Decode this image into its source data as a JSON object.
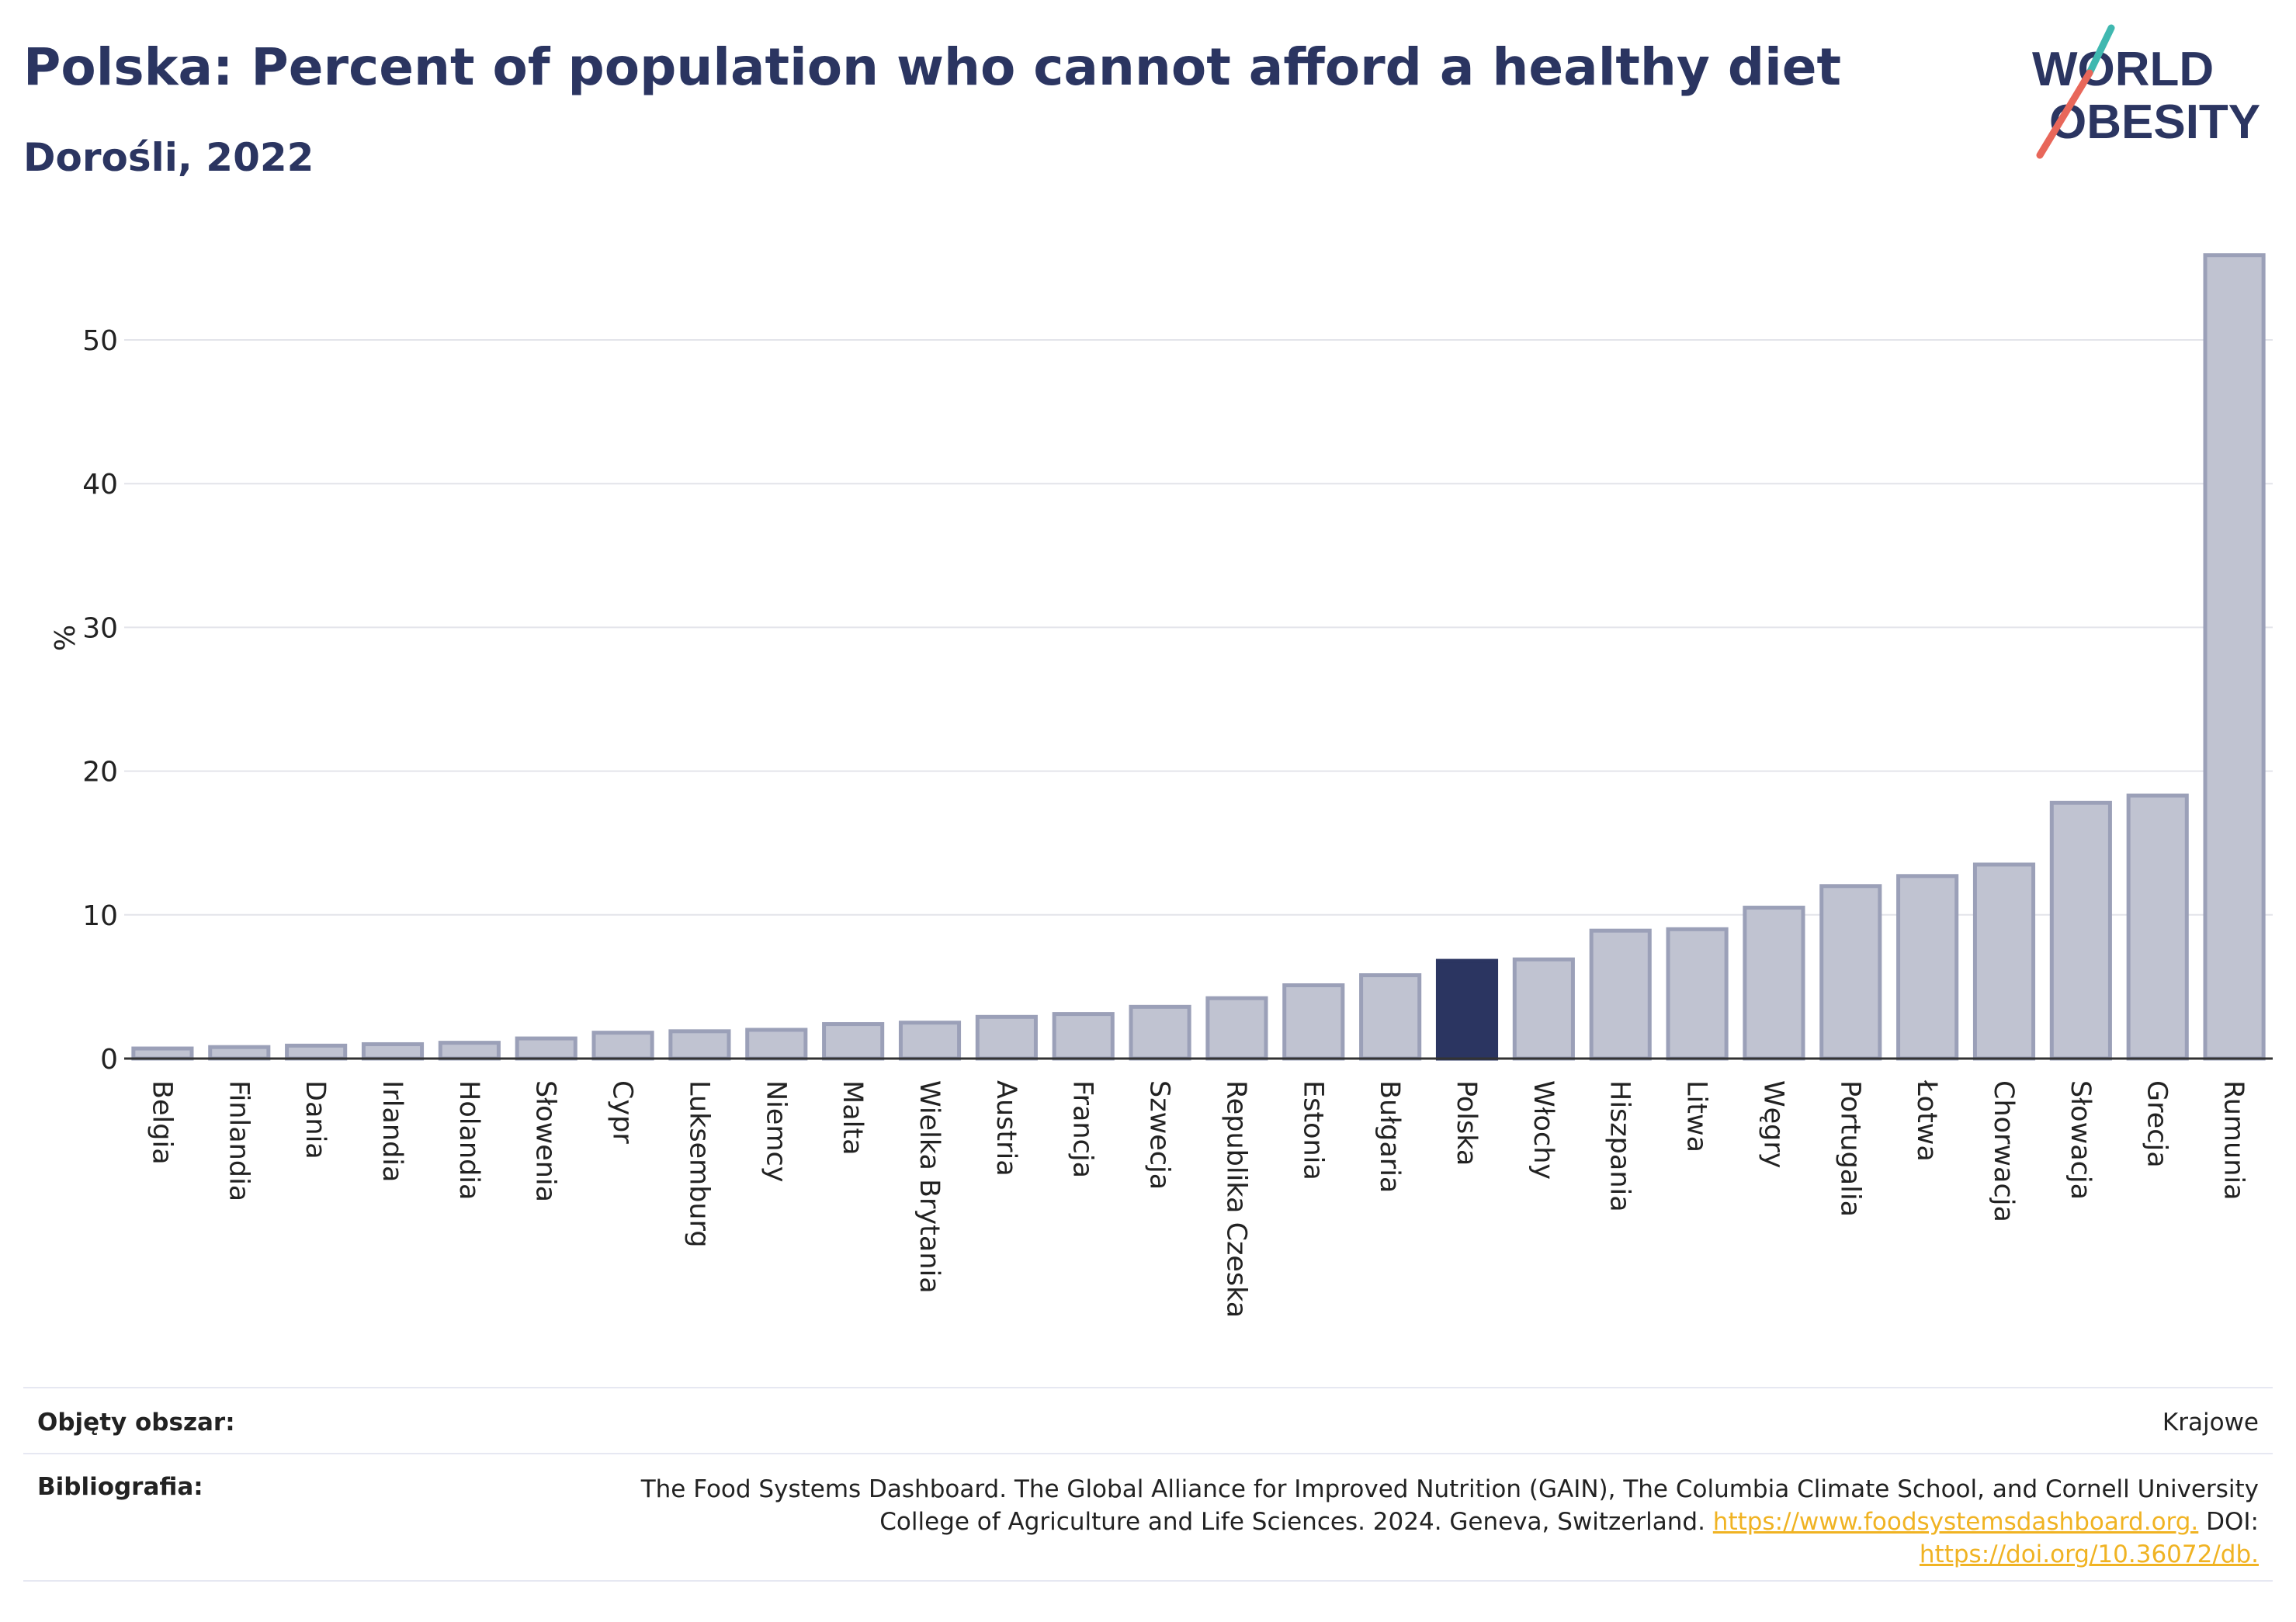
{
  "header": {
    "title": "Polska: Percent of population who cannot afford a healthy diet",
    "subtitle": "Dorośli, 2022"
  },
  "logo": {
    "line1": "WORLD",
    "line2": "OBESITY"
  },
  "colors": {
    "highlight": "#2b3561",
    "bar": "#c0c3d1",
    "bar_border": "#9ba0b8",
    "grid": "#e3e4ea",
    "accent_teal": "#3fb8b0",
    "accent_red": "#e8675a"
  },
  "chart_data": {
    "type": "bar",
    "title": "Polska: Percent of population who cannot afford a healthy diet",
    "subtitle": "Dorośli, 2022",
    "xlabel": "",
    "ylabel": "%",
    "ylim": [
      0,
      56
    ],
    "yticks": [
      0,
      10,
      20,
      30,
      40,
      50
    ],
    "grid": true,
    "highlight": "Polska",
    "categories": [
      "Belgia",
      "Finlandia",
      "Dania",
      "Irlandia",
      "Holandia",
      "Słowenia",
      "Cypr",
      "Luksemburg",
      "Niemcy",
      "Malta",
      "Wielka Brytania",
      "Austria",
      "Francja",
      "Szwecja",
      "Republika Czeska",
      "Estonia",
      "Bułgaria",
      "Polska",
      "Włochy",
      "Hiszpania",
      "Litwa",
      "Węgry",
      "Portugalia",
      "Łotwa",
      "Chorwacja",
      "Słowacja",
      "Grecja",
      "Rumunia"
    ],
    "values": [
      0.7,
      0.8,
      0.9,
      1.0,
      1.1,
      1.4,
      1.8,
      1.9,
      2.0,
      2.4,
      2.5,
      2.9,
      3.1,
      3.6,
      4.2,
      5.1,
      5.8,
      6.8,
      6.9,
      8.9,
      9.0,
      10.5,
      12.0,
      12.7,
      13.5,
      17.8,
      18.3,
      55.9
    ]
  },
  "footer": {
    "coverage_label": "Objęty obszar:",
    "coverage_value": "Krajowe",
    "bibliography_label": "Bibliografia:",
    "bibliography_line1": "The Food Systems Dashboard. The Global Alliance for Improved Nutrition (GAIN), The Columbia Climate School, and Cornell University",
    "bibliography_line2_text": "College of Agriculture and Life Sciences. 2024. Geneva, Switzerland. ",
    "bibliography_link1": "https://www.foodsystemsdashboard.org.",
    "bibliography_doi_label": " DOI:",
    "bibliography_link2": "https://doi.org/10.36072/db."
  }
}
